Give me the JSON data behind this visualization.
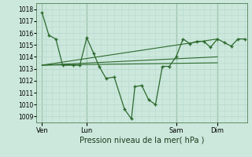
{
  "background_color": "#cce8dd",
  "grid_color": "#b8d8cc",
  "line_color": "#2d6a2d",
  "title": "Pression niveau de la mer( hPa )",
  "ylim": [
    1008.5,
    1018.5
  ],
  "yticks": [
    1009,
    1010,
    1011,
    1012,
    1013,
    1014,
    1015,
    1016,
    1017,
    1018
  ],
  "xlim": [
    -0.3,
    30.3
  ],
  "day_labels": [
    "Ven",
    "Lun",
    "Sam",
    "Dim"
  ],
  "day_positions": [
    0.5,
    7,
    20,
    26
  ],
  "series_main": {
    "x": [
      0.5,
      1.5,
      2.5,
      3.5,
      5.0,
      6.0,
      7.0,
      8.0,
      8.8,
      9.8,
      11.0,
      12.5,
      13.5,
      14.0,
      15.0,
      16.0,
      17.0,
      18.0,
      19.0,
      20.0,
      21.0,
      22.0,
      23.0,
      24.0,
      25.0,
      26.0,
      27.0,
      28.0,
      29.0,
      30.0
    ],
    "y": [
      1017.7,
      1015.8,
      1015.5,
      1013.3,
      1013.3,
      1013.3,
      1015.6,
      1014.3,
      1013.2,
      1012.2,
      1012.3,
      1009.6,
      1008.8,
      1011.5,
      1011.6,
      1010.4,
      1010.0,
      1013.2,
      1013.2,
      1014.0,
      1015.5,
      1015.1,
      1015.3,
      1015.3,
      1014.8,
      1015.5,
      1015.2,
      1014.9,
      1015.5,
      1015.5
    ]
  },
  "series_trend1": {
    "x": [
      0.5,
      26.0
    ],
    "y": [
      1013.3,
      1014.0
    ]
  },
  "series_trend2": {
    "x": [
      0.5,
      26.0
    ],
    "y": [
      1013.3,
      1015.5
    ]
  },
  "series_trend3": {
    "x": [
      0.5,
      26.0
    ],
    "y": [
      1013.3,
      1013.5
    ]
  }
}
